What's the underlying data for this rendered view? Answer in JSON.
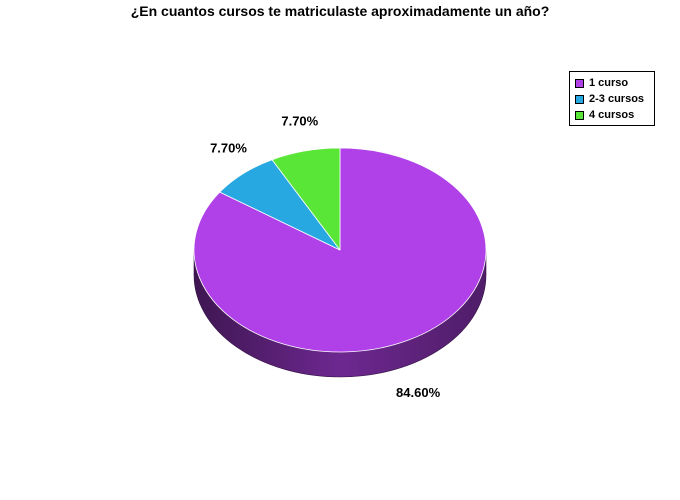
{
  "chart_data": {
    "type": "pie",
    "title": "¿En cuantos cursos te matriculaste aproximadamente un año?",
    "categories": [
      "1 curso",
      "2-3 cursos",
      "4 cursos"
    ],
    "values": [
      84.6,
      7.7,
      7.7
    ],
    "data_labels": [
      "84.60%",
      "7.70%",
      "7.70%"
    ],
    "colors": [
      "#b040e8",
      "#28a8e0",
      "#5ae636"
    ],
    "style": "3d",
    "legend_position": "top-right"
  }
}
